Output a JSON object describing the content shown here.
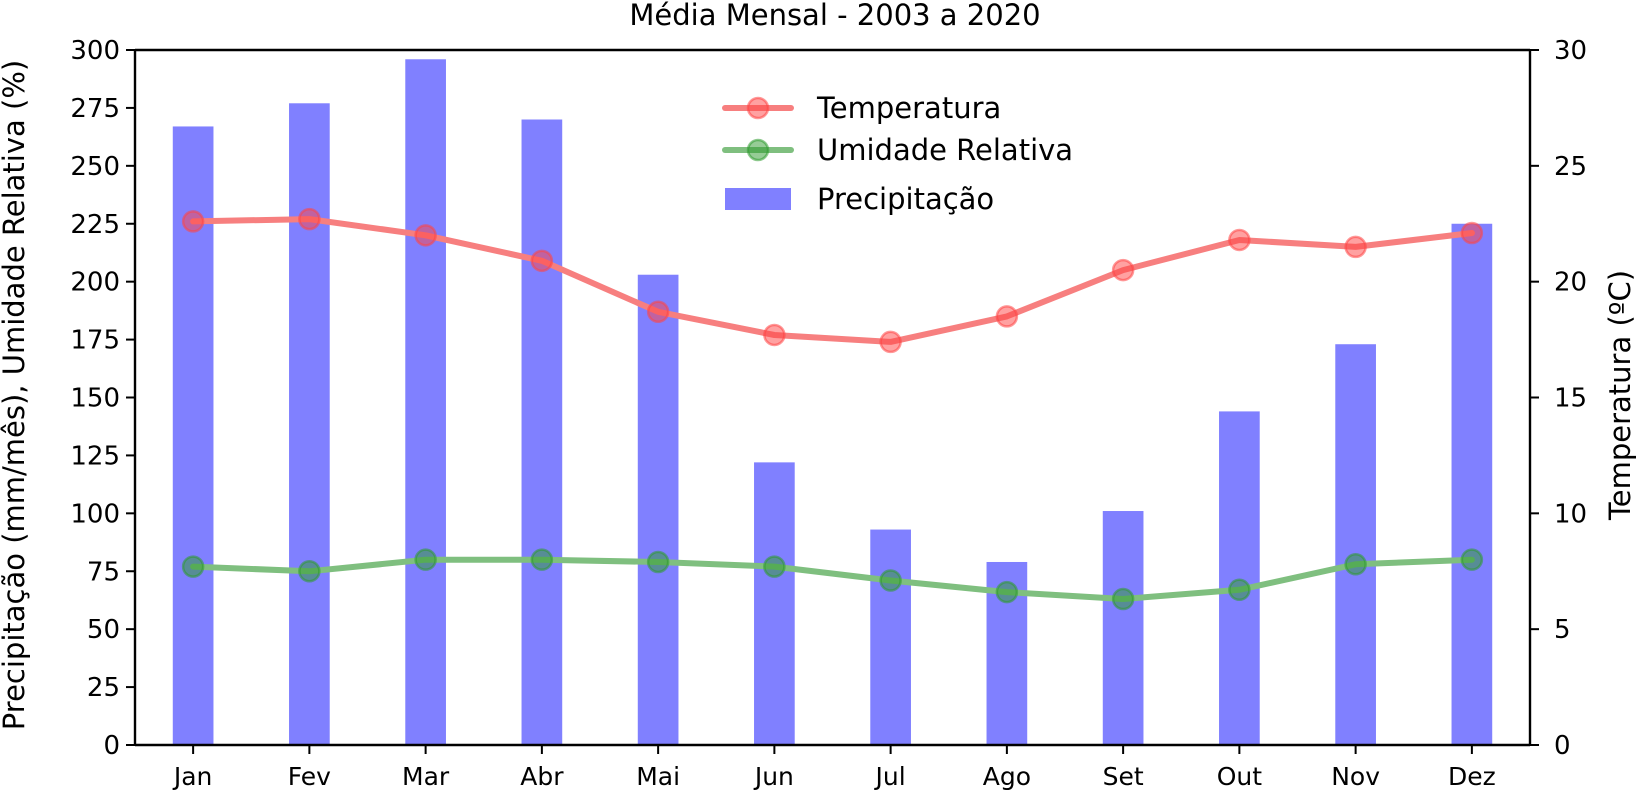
{
  "chart_data": {
    "type": "bar",
    "title": "Média Mensal - 2003 a 2020",
    "ylabel_left": "Precipitação (mm/mês), Umidade Relativa (%)",
    "ylabel_right": "Temperatura (ºC)",
    "xlabel": "",
    "categories": [
      "Jan",
      "Fev",
      "Mar",
      "Abr",
      "Mai",
      "Jun",
      "Jul",
      "Ago",
      "Set",
      "Out",
      "Nov",
      "Dez"
    ],
    "ylim_left": [
      0,
      300
    ],
    "yticks_left": [
      0,
      25,
      50,
      75,
      100,
      125,
      150,
      175,
      200,
      225,
      250,
      275,
      300
    ],
    "ylim_right": [
      0,
      30
    ],
    "yticks_right": [
      0,
      5,
      10,
      15,
      20,
      25,
      30
    ],
    "grid": false,
    "legend_placement": "top-center",
    "series": [
      {
        "name": "Precipitação",
        "type": "bar",
        "axis": "left",
        "color": "#8080ff",
        "values": [
          267,
          277,
          296,
          270,
          203,
          122,
          93,
          79,
          101,
          144,
          173,
          225
        ]
      },
      {
        "name": "Temperatura",
        "type": "line",
        "axis": "right",
        "color": "#f77f7f",
        "marker_color": "#ff4444",
        "values": [
          22.6,
          22.7,
          22.0,
          20.9,
          18.7,
          17.7,
          17.4,
          18.5,
          20.5,
          21.8,
          21.5,
          22.1
        ]
      },
      {
        "name": "Umidade Relativa",
        "type": "line",
        "axis": "left",
        "color": "#7fbf7f",
        "marker_color": "#2e9a2e",
        "values": [
          77,
          75,
          80,
          80,
          79,
          77,
          71,
          66,
          63,
          67,
          78,
          80
        ]
      }
    ]
  }
}
